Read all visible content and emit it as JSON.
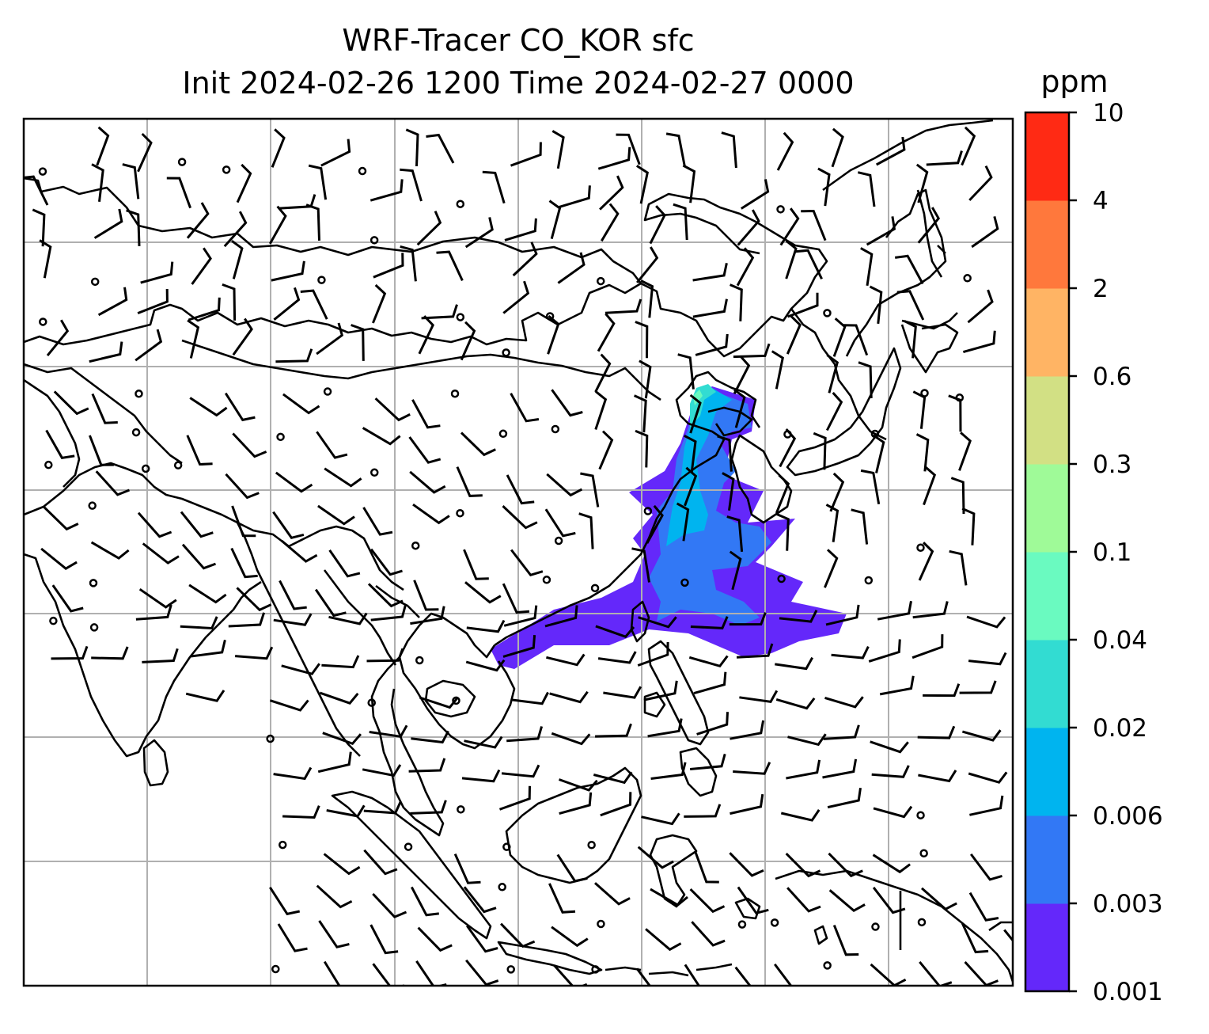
{
  "title": {
    "line1": "WRF-Tracer CO_KOR sfc",
    "line2": "Init 2024-02-26 1200 Time 2024-02-27 0000"
  },
  "colorbar": {
    "unit": "ppm",
    "levels": [
      "0.001",
      "0.003",
      "0.006",
      "0.02",
      "0.04",
      "0.1",
      "0.3",
      "0.6",
      "2",
      "4",
      "10"
    ],
    "colors": [
      "#6428fa",
      "#3278f5",
      "#00b4ef",
      "#32dcd2",
      "#6afac0",
      "#9ffa98",
      "#d2e084",
      "#ffb464",
      "#ff783c",
      "#ff2a14"
    ]
  },
  "map": {
    "grid": true,
    "plume_colors": {
      "outer": "#6428fa",
      "mid": "#3278f5",
      "inner": "#00b4ef",
      "core": "#32dcd2",
      "peak": "#6afac0"
    }
  }
}
